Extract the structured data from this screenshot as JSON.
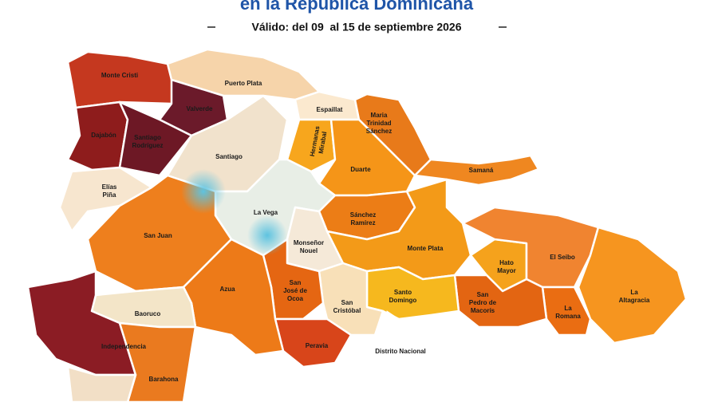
{
  "header": {
    "title": "en la República Dominicana",
    "subtitle": "Válido: del 09  al 15 de septiembre 2026"
  },
  "provinces": [
    {
      "lines": [
        "Monte Cristi"
      ]
    },
    {
      "lines": [
        "Puerto Plata"
      ]
    },
    {
      "lines": [
        "Valverde"
      ]
    },
    {
      "lines": [
        "Espaillat"
      ]
    },
    {
      "lines": [
        "Maria",
        "Trinidad",
        "Sánchez"
      ]
    },
    {
      "lines": [
        "Dajabón"
      ]
    },
    {
      "lines": [
        "Santiago",
        "Rodríguez"
      ]
    },
    {
      "lines": [
        "Santiago"
      ]
    },
    {
      "lines": [
        "Hermanas",
        "Mirabal"
      ]
    },
    {
      "lines": [
        "Duarte"
      ]
    },
    {
      "lines": [
        "Samaná"
      ]
    },
    {
      "lines": [
        "Elías",
        "Piña"
      ]
    },
    {
      "lines": [
        "La Vega"
      ]
    },
    {
      "lines": [
        "Sánchez",
        "Ramírez"
      ]
    },
    {
      "lines": [
        "San Juan"
      ]
    },
    {
      "lines": [
        "Monseñor",
        "Nouel"
      ]
    },
    {
      "lines": [
        "Monte Plata"
      ]
    },
    {
      "lines": [
        "Hato",
        "Mayor"
      ]
    },
    {
      "lines": [
        "El Seibo"
      ]
    },
    {
      "lines": [
        "Azua"
      ]
    },
    {
      "lines": [
        "San",
        "José de",
        "Ocoa"
      ]
    },
    {
      "lines": [
        "San",
        "Cristóbal"
      ]
    },
    {
      "lines": [
        "Santo",
        "Domingo"
      ]
    },
    {
      "lines": [
        "San",
        "Pedro de",
        "Macorís"
      ]
    },
    {
      "lines": [
        "La",
        "Romana"
      ]
    },
    {
      "lines": [
        "La",
        "Altagracia"
      ]
    },
    {
      "lines": [
        "Baoruco"
      ]
    },
    {
      "lines": [
        "Independencia"
      ]
    },
    {
      "lines": [
        "Peravia"
      ]
    },
    {
      "lines": [
        "Distrito Nacional"
      ]
    },
    {
      "lines": [
        "Barahona"
      ]
    }
  ]
}
